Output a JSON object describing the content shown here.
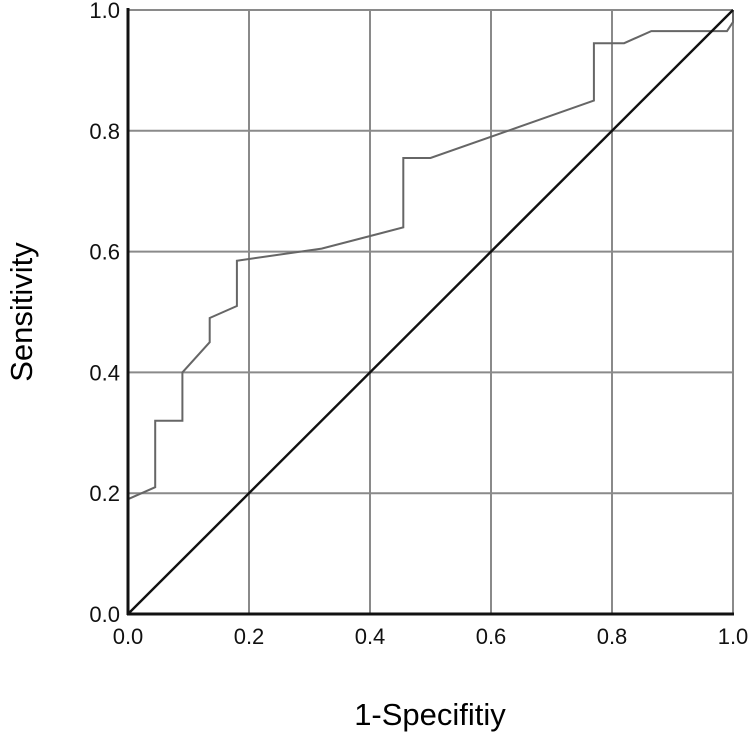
{
  "chart_data": {
    "type": "line",
    "title": "",
    "xlabel": "1-Specifitiy",
    "ylabel": "Sensitivity",
    "xlim": [
      0,
      1
    ],
    "ylim": [
      0,
      1
    ],
    "x_ticks": [
      "0.0",
      "0.2",
      "0.4",
      "0.6",
      "0.8",
      "1.0"
    ],
    "y_ticks": [
      "0.0",
      "0.2",
      "0.4",
      "0.6",
      "0.8",
      "1.0"
    ],
    "grid": true,
    "legend": "none",
    "series": [
      {
        "role": "roc-curve",
        "color": "#666666",
        "points": [
          [
            0.0,
            0.19
          ],
          [
            0.045,
            0.21
          ],
          [
            0.045,
            0.32
          ],
          [
            0.09,
            0.32
          ],
          [
            0.09,
            0.4
          ],
          [
            0.135,
            0.45
          ],
          [
            0.135,
            0.49
          ],
          [
            0.18,
            0.51
          ],
          [
            0.18,
            0.585
          ],
          [
            0.32,
            0.605
          ],
          [
            0.455,
            0.64
          ],
          [
            0.455,
            0.755
          ],
          [
            0.5,
            0.755
          ],
          [
            0.77,
            0.85
          ],
          [
            0.77,
            0.945
          ],
          [
            0.82,
            0.945
          ],
          [
            0.865,
            0.965
          ],
          [
            0.99,
            0.965
          ],
          [
            1.0,
            0.98
          ],
          [
            1.0,
            1.0
          ]
        ]
      },
      {
        "role": "reference-line",
        "color": "#111111",
        "points": [
          [
            0.0,
            0.0
          ],
          [
            1.0,
            1.0
          ]
        ]
      }
    ]
  }
}
